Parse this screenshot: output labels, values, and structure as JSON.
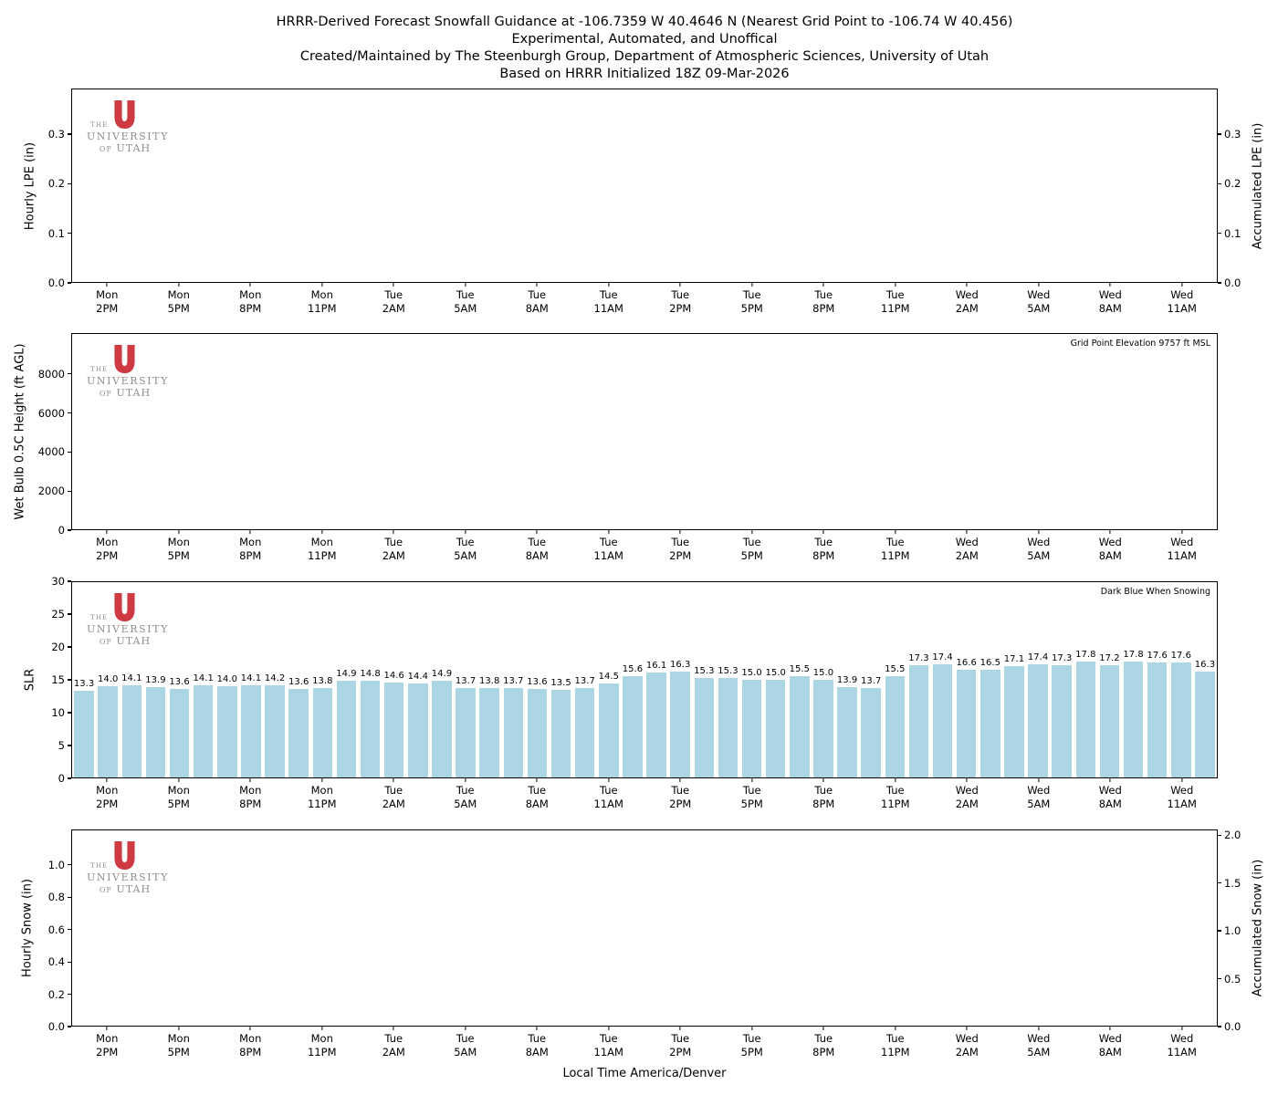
{
  "title": {
    "line1": "HRRR-Derived Forecast Snowfall Guidance at -106.7359 W 40.4646 N (Nearest Grid Point to -106.74 W 40.456)",
    "line2": "Experimental, Automated, and Unoffical",
    "line3": "Created/Maintained by The Steenburgh Group, Department of Atmospheric Sciences, University of Utah",
    "line4": "Based on HRRR Initialized 18Z 09-Mar-2026"
  },
  "logo": {
    "the": "THE",
    "university": "UNIVERSITY",
    "of": "OF",
    "utah": "UTAH",
    "mark_color": "#CE3A42",
    "text_color": "#908E89"
  },
  "x_axis": {
    "xlabel": "Local Time America/Denver",
    "ticks": [
      {
        "d": "Mon",
        "t": "2PM"
      },
      {
        "d": "Mon",
        "t": "5PM"
      },
      {
        "d": "Mon",
        "t": "8PM"
      },
      {
        "d": "Mon",
        "t": "11PM"
      },
      {
        "d": "Tue",
        "t": "2AM"
      },
      {
        "d": "Tue",
        "t": "5AM"
      },
      {
        "d": "Tue",
        "t": "8AM"
      },
      {
        "d": "Tue",
        "t": "11AM"
      },
      {
        "d": "Tue",
        "t": "2PM"
      },
      {
        "d": "Tue",
        "t": "5PM"
      },
      {
        "d": "Tue",
        "t": "8PM"
      },
      {
        "d": "Tue",
        "t": "11PM"
      },
      {
        "d": "Wed",
        "t": "2AM"
      },
      {
        "d": "Wed",
        "t": "5AM"
      },
      {
        "d": "Wed",
        "t": "8AM"
      },
      {
        "d": "Wed",
        "t": "11AM"
      }
    ]
  },
  "chart_data": [
    {
      "key": "lpe",
      "type": "line",
      "ylabel": "Hourly LPE (in)",
      "ylabel_right": "Accumulated LPE (in)",
      "ylim": [
        0,
        0.392
      ],
      "yticks": [
        0.0,
        0.1,
        0.2,
        0.3
      ],
      "ytick_labels": [
        "0.0",
        "0.1",
        "0.2",
        "0.3"
      ],
      "ylim_right": [
        0,
        0.392
      ],
      "yticks_right": [
        0.0,
        0.1,
        0.2,
        0.3
      ],
      "ytick_labels_right": [
        "0.0",
        "0.1",
        "0.2",
        "0.3"
      ],
      "series": []
    },
    {
      "key": "wetbulb",
      "type": "line",
      "ylabel": "Wet Bulb 0.5C Height (ft AGL)",
      "ylim": [
        0,
        10100
      ],
      "yticks": [
        0,
        2000,
        4000,
        6000,
        8000
      ],
      "ytick_labels": [
        "0",
        "2000",
        "4000",
        "6000",
        "8000"
      ],
      "annotation": "Grid Point Elevation 9757 ft MSL",
      "series": []
    },
    {
      "key": "slr",
      "type": "bar",
      "ylabel": "SLR",
      "ylim": [
        0,
        30
      ],
      "yticks": [
        0,
        5,
        10,
        15,
        20,
        25,
        30
      ],
      "ytick_labels": [
        "0",
        "5",
        "10",
        "15",
        "20",
        "25",
        "30"
      ],
      "annotation": "Dark Blue When Snowing",
      "bar_color": "#ACD6E3",
      "values": [
        13.3,
        14.0,
        14.1,
        13.9,
        13.6,
        14.1,
        14.0,
        14.1,
        14.2,
        13.6,
        13.8,
        14.9,
        14.8,
        14.6,
        14.4,
        14.9,
        13.7,
        13.8,
        13.7,
        13.6,
        13.5,
        13.7,
        14.5,
        15.6,
        16.1,
        16.3,
        15.3,
        15.3,
        15.0,
        15.0,
        15.5,
        15.0,
        13.9,
        13.7,
        15.5,
        17.3,
        17.4,
        16.6,
        16.5,
        17.1,
        17.4,
        17.3,
        17.8,
        17.2,
        17.8,
        17.6,
        17.6,
        16.3
      ]
    },
    {
      "key": "snow",
      "type": "bar",
      "ylabel": "Hourly Snow (in)",
      "ylabel_right": "Accumulated Snow (in)",
      "ylim": [
        0,
        1.22
      ],
      "yticks": [
        0.0,
        0.2,
        0.4,
        0.6,
        0.8,
        1.0
      ],
      "ytick_labels": [
        "0.0",
        "0.2",
        "0.4",
        "0.6",
        "0.8",
        "1.0"
      ],
      "ylim_right": [
        0,
        2.06
      ],
      "yticks_right": [
        0.0,
        0.5,
        1.0,
        1.5,
        2.0
      ],
      "ytick_labels_right": [
        "0.0",
        "0.5",
        "1.0",
        "1.5",
        "2.0"
      ],
      "series": []
    }
  ]
}
